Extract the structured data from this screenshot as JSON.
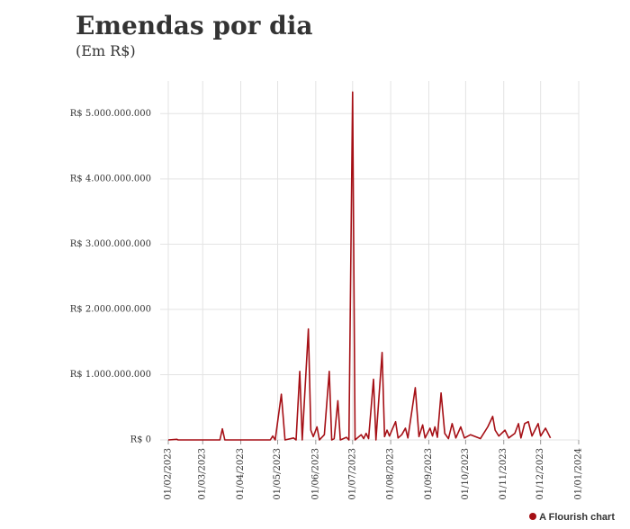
{
  "chart_data": {
    "type": "line",
    "title": "Emendas por dia",
    "subtitle": "(Em R$)",
    "credit": "A Flourish chart",
    "grid": true,
    "xlim": [
      "2023-02-01",
      "2024-01-01"
    ],
    "xticks": [
      {
        "value": "2023-02-01",
        "label": "01/02/2023"
      },
      {
        "value": "2023-03-01",
        "label": "01/03/2023"
      },
      {
        "value": "2023-04-01",
        "label": "01/04/2023"
      },
      {
        "value": "2023-05-01",
        "label": "01/05/2023"
      },
      {
        "value": "2023-06-01",
        "label": "01/06/2023"
      },
      {
        "value": "2023-07-01",
        "label": "01/07/2023"
      },
      {
        "value": "2023-08-01",
        "label": "01/08/2023"
      },
      {
        "value": "2023-09-01",
        "label": "01/09/2023"
      },
      {
        "value": "2023-10-01",
        "label": "01/10/2023"
      },
      {
        "value": "2023-11-01",
        "label": "01/11/2023"
      },
      {
        "value": "2023-12-01",
        "label": "01/12/2023"
      },
      {
        "value": "2024-01-01",
        "label": "01/01/2024"
      }
    ],
    "ylim": [
      0,
      5500000000
    ],
    "yticks": [
      {
        "value": 0,
        "label": "R$ 0"
      },
      {
        "value": 1000000000,
        "label": "R$ 1.000.000.000"
      },
      {
        "value": 2000000000,
        "label": "R$ 2.000.000.000"
      },
      {
        "value": 3000000000,
        "label": "R$ 3.000.000.000"
      },
      {
        "value": 4000000000,
        "label": "R$ 4.000.000.000"
      },
      {
        "value": 5000000000,
        "label": "R$ 5.000.000.000"
      }
    ],
    "x": [
      "2023-02-01",
      "2023-02-08",
      "2023-02-09",
      "2023-03-15",
      "2023-03-17",
      "2023-03-19",
      "2023-04-25",
      "2023-04-27",
      "2023-04-29",
      "2023-05-04",
      "2023-05-07",
      "2023-05-14",
      "2023-05-16",
      "2023-05-19",
      "2023-05-21",
      "2023-05-26",
      "2023-05-28",
      "2023-05-30",
      "2023-06-02",
      "2023-06-04",
      "2023-06-08",
      "2023-06-12",
      "2023-06-14",
      "2023-06-16",
      "2023-06-19",
      "2023-06-21",
      "2023-06-26",
      "2023-06-28",
      "2023-07-01",
      "2023-07-03",
      "2023-07-08",
      "2023-07-10",
      "2023-07-12",
      "2023-07-14",
      "2023-07-18",
      "2023-07-20",
      "2023-07-25",
      "2023-07-27",
      "2023-07-29",
      "2023-07-31",
      "2023-08-02",
      "2023-08-05",
      "2023-08-07",
      "2023-08-10",
      "2023-08-13",
      "2023-08-15",
      "2023-08-21",
      "2023-08-24",
      "2023-08-27",
      "2023-08-29",
      "2023-09-02",
      "2023-09-04",
      "2023-09-06",
      "2023-09-08",
      "2023-09-11",
      "2023-09-14",
      "2023-09-17",
      "2023-09-20",
      "2023-09-23",
      "2023-09-27",
      "2023-09-30",
      "2023-10-05",
      "2023-10-09",
      "2023-10-13",
      "2023-10-19",
      "2023-10-23",
      "2023-10-25",
      "2023-10-28",
      "2023-11-02",
      "2023-11-05",
      "2023-11-10",
      "2023-11-13",
      "2023-11-15",
      "2023-11-18",
      "2023-11-21",
      "2023-11-24",
      "2023-11-29",
      "2023-12-01",
      "2023-12-05",
      "2023-12-09"
    ],
    "series": [
      {
        "name": "Emendas",
        "color": "#a50f15",
        "values": [
          0,
          10000000,
          0,
          0,
          170000000,
          0,
          0,
          60000000,
          0,
          700000000,
          0,
          30000000,
          0,
          1050000000,
          0,
          1700000000,
          150000000,
          50000000,
          200000000,
          0,
          80000000,
          1050000000,
          0,
          20000000,
          600000000,
          0,
          40000000,
          0,
          5330000000,
          0,
          80000000,
          20000000,
          100000000,
          20000000,
          930000000,
          0,
          1340000000,
          50000000,
          150000000,
          60000000,
          150000000,
          280000000,
          30000000,
          80000000,
          180000000,
          30000000,
          800000000,
          50000000,
          230000000,
          30000000,
          180000000,
          60000000,
          200000000,
          40000000,
          720000000,
          100000000,
          20000000,
          250000000,
          30000000,
          200000000,
          30000000,
          80000000,
          50000000,
          20000000,
          200000000,
          360000000,
          150000000,
          60000000,
          150000000,
          30000000,
          100000000,
          250000000,
          30000000,
          250000000,
          280000000,
          60000000,
          250000000,
          60000000,
          180000000,
          30000000
        ]
      }
    ]
  }
}
